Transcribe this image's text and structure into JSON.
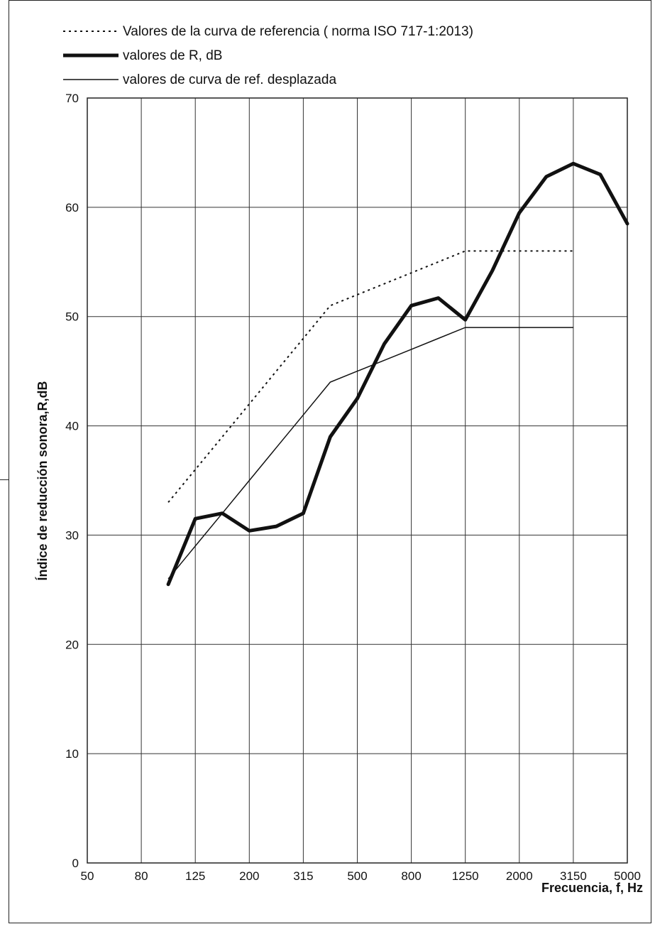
{
  "chart_data": {
    "type": "line",
    "title": "",
    "xlabel": "Frecuencia, f, Hz",
    "ylabel": "Índice de reducción sonora,R,dB",
    "ylim": [
      0,
      70
    ],
    "x_scale": "log (third-octave bands)",
    "grid": true,
    "legend_position": "top",
    "categories": [
      "50",
      "63",
      "80",
      "100",
      "125",
      "160",
      "200",
      "250",
      "315",
      "400",
      "500",
      "630",
      "800",
      "1000",
      "1250",
      "1600",
      "2000",
      "2500",
      "3150",
      "4000",
      "5000"
    ],
    "x_tick_labels": [
      "50",
      "80",
      "125",
      "200",
      "315",
      "500",
      "800",
      "1250",
      "2000",
      "3150",
      "5000"
    ],
    "y_ticks": [
      0,
      10,
      20,
      30,
      40,
      50,
      60,
      70
    ],
    "series": [
      {
        "name": "Valores de la curva de referencia ( norma ISO 717-1:2013)",
        "style": "dotted",
        "color": "#111111",
        "x": [
          "100",
          "125",
          "160",
          "200",
          "250",
          "315",
          "400",
          "500",
          "630",
          "800",
          "1000",
          "1250",
          "1600",
          "2000",
          "2500",
          "3150"
        ],
        "values": [
          33,
          36,
          39,
          42,
          45,
          48,
          51,
          52,
          53,
          54,
          55,
          56,
          56,
          56,
          56,
          56
        ]
      },
      {
        "name": "valores de R, dB",
        "style": "thick",
        "color": "#111111",
        "x": [
          "100",
          "125",
          "160",
          "200",
          "250",
          "315",
          "400",
          "500",
          "630",
          "800",
          "1000",
          "1250",
          "1600",
          "2000",
          "2500",
          "3150",
          "4000",
          "5000"
        ],
        "values": [
          25.5,
          31.5,
          32,
          30.4,
          30.8,
          32,
          39,
          42.5,
          47.5,
          51,
          51.7,
          49.7,
          54.2,
          59.5,
          62.8,
          64,
          63,
          58.5
        ]
      },
      {
        "name": "valores de curva de ref. desplazada",
        "style": "thin",
        "color": "#111111",
        "x": [
          "100",
          "125",
          "160",
          "200",
          "250",
          "315",
          "400",
          "500",
          "630",
          "800",
          "1000",
          "1250",
          "1600",
          "2000",
          "2500",
          "3150"
        ],
        "values": [
          26,
          29,
          32,
          35,
          38,
          41,
          44,
          45,
          46,
          47,
          48,
          49,
          49,
          49,
          49,
          49
        ]
      }
    ]
  }
}
